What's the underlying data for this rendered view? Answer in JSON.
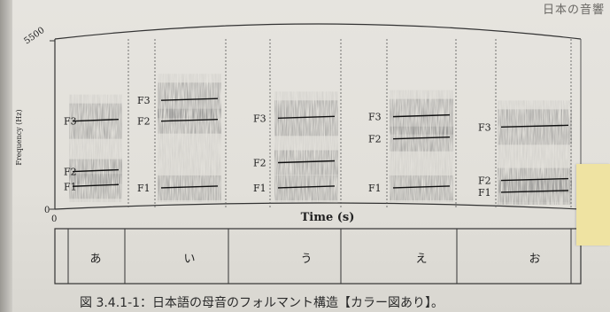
{
  "header": {
    "text": "日本の音響"
  },
  "figure": {
    "y_top_label": "5500",
    "y_bottom_label": "0",
    "x_origin_label": "0",
    "ylabel": "Frequency (Hz)",
    "xlabel": "Time (s)",
    "vowels": [
      {
        "kana": "あ",
        "formants": [
          {
            "name": "F1",
            "hz": 650
          },
          {
            "name": "F2",
            "hz": 1150
          },
          {
            "name": "F3",
            "hz": 2850
          }
        ]
      },
      {
        "kana": "い",
        "formants": [
          {
            "name": "F1",
            "hz": 600
          },
          {
            "name": "F2",
            "hz": 2850
          },
          {
            "name": "F3",
            "hz": 3550
          }
        ]
      },
      {
        "kana": "う",
        "formants": [
          {
            "name": "F1",
            "hz": 600
          },
          {
            "name": "F2",
            "hz": 1450
          },
          {
            "name": "F3",
            "hz": 2950
          }
        ]
      },
      {
        "kana": "え",
        "formants": [
          {
            "name": "F1",
            "hz": 600
          },
          {
            "name": "F2",
            "hz": 2250
          },
          {
            "name": "F3",
            "hz": 3000
          }
        ]
      },
      {
        "kana": "お",
        "formants": [
          {
            "name": "F1",
            "hz": 450
          },
          {
            "name": "F2",
            "hz": 850
          },
          {
            "name": "F3",
            "hz": 2650
          }
        ]
      }
    ]
  },
  "caption": "図 3.4.1-1：日本語の母音のフォルマント構造【カラー図あり】。"
}
